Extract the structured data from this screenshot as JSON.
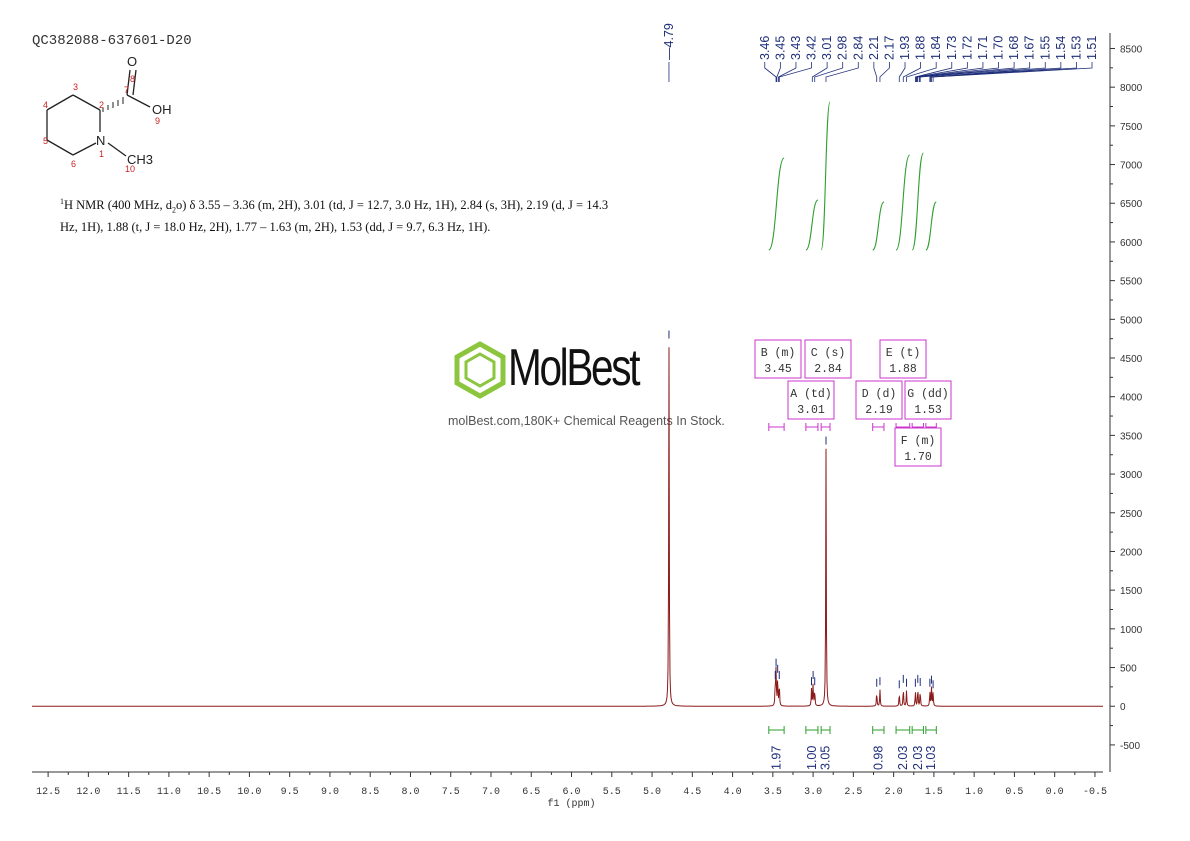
{
  "sample_id": "QC382088-637601-D20",
  "nmr_description": {
    "nucleus": "1",
    "lead": "H NMR (400 MHz, d",
    "solvent_sub": "2",
    "rest": "o) δ 3.55 – 3.36 (m, 2H), 3.01 (td, J = 12.7, 3.0 Hz, 1H), 2.84 (s, 3H), 2.19 (d, J = 14.3 Hz, 1H), 1.88 (t, J = 18.0 Hz, 2H), 1.77 – 1.63 (m, 2H), 1.53 (dd, J = 9.7, 6.3 Hz, 1H)."
  },
  "structure": {
    "atoms": [
      "O",
      "OH",
      "N",
      "CH3"
    ],
    "numbers": [
      "1",
      "2",
      "3",
      "4",
      "5",
      "6",
      "7",
      "8",
      "9",
      "10"
    ]
  },
  "watermark": {
    "brand": "MolBest",
    "tagline": "molBest.com,180K+ Chemical Reagents In Stock."
  },
  "colors": {
    "spectrum": "#8b1a1a",
    "integral": "#2e9e2e",
    "peak_label": "#1f2f7a",
    "multiplet_box": "#cc33cc"
  },
  "chart_data": {
    "type": "line",
    "xlabel": "f1 (ppm)",
    "xlim": [
      12.7,
      -0.6
    ],
    "ylim": [
      -850,
      8700
    ],
    "x_ticks": [
      "12.5",
      "12.0",
      "11.5",
      "11.0",
      "10.5",
      "10.0",
      "9.5",
      "9.0",
      "8.5",
      "8.0",
      "7.5",
      "7.0",
      "6.5",
      "6.0",
      "5.5",
      "5.0",
      "4.5",
      "4.0",
      "3.5",
      "3.0",
      "2.5",
      "2.0",
      "1.5",
      "1.0",
      "0.5",
      "0.0",
      "-0.5"
    ],
    "y_ticks": [
      "-500",
      "0",
      "500",
      "1000",
      "1500",
      "2000",
      "2500",
      "3000",
      "3500",
      "4000",
      "4500",
      "5000",
      "5500",
      "6000",
      "6500",
      "7000",
      "7500",
      "8000",
      "8500"
    ],
    "peaks": [
      {
        "ppm": 4.79,
        "height": 4700
      },
      {
        "ppm": 3.47,
        "height": 300
      },
      {
        "ppm": 3.46,
        "height": 460
      },
      {
        "ppm": 3.44,
        "height": 380
      },
      {
        "ppm": 3.42,
        "height": 300
      },
      {
        "ppm": 3.02,
        "height": 220
      },
      {
        "ppm": 3.0,
        "height": 300
      },
      {
        "ppm": 2.98,
        "height": 220
      },
      {
        "ppm": 2.84,
        "height": 3330
      },
      {
        "ppm": 2.21,
        "height": 200
      },
      {
        "ppm": 2.17,
        "height": 220
      },
      {
        "ppm": 1.93,
        "height": 180
      },
      {
        "ppm": 1.88,
        "height": 250
      },
      {
        "ppm": 1.84,
        "height": 200
      },
      {
        "ppm": 1.73,
        "height": 200
      },
      {
        "ppm": 1.7,
        "height": 250
      },
      {
        "ppm": 1.67,
        "height": 210
      },
      {
        "ppm": 1.55,
        "height": 200
      },
      {
        "ppm": 1.53,
        "height": 240
      },
      {
        "ppm": 1.51,
        "height": 180
      }
    ],
    "peak_labels": [
      "4.79",
      "3.46",
      "3.45",
      "3.43",
      "3.42",
      "3.01",
      "2.98",
      "2.84",
      "2.21",
      "2.17",
      "1.93",
      "1.88",
      "1.84",
      "1.73",
      "1.72",
      "1.71",
      "1.70",
      "1.68",
      "1.67",
      "1.55",
      "1.54",
      "1.53",
      "1.51"
    ],
    "integrals": [
      {
        "from": 3.55,
        "to": 3.36,
        "value": "1.97"
      },
      {
        "from": 3.09,
        "to": 2.94,
        "value": "1.00"
      },
      {
        "from": 2.9,
        "to": 2.79,
        "value": "3.05"
      },
      {
        "from": 2.26,
        "to": 2.12,
        "value": "0.98"
      },
      {
        "from": 1.97,
        "to": 1.8,
        "value": "2.03"
      },
      {
        "from": 1.77,
        "to": 1.63,
        "value": "2.03"
      },
      {
        "from": 1.6,
        "to": 1.47,
        "value": "1.03"
      }
    ],
    "multiplets": [
      {
        "label": "B (m)",
        "shift": "3.45"
      },
      {
        "label": "C (s)",
        "shift": "2.84"
      },
      {
        "label": "E (t)",
        "shift": "1.88"
      },
      {
        "label": "A (td)",
        "shift": "3.01"
      },
      {
        "label": "D (d)",
        "shift": "2.19"
      },
      {
        "label": "G (dd)",
        "shift": "1.53"
      },
      {
        "label": "F (m)",
        "shift": "1.70"
      }
    ]
  }
}
